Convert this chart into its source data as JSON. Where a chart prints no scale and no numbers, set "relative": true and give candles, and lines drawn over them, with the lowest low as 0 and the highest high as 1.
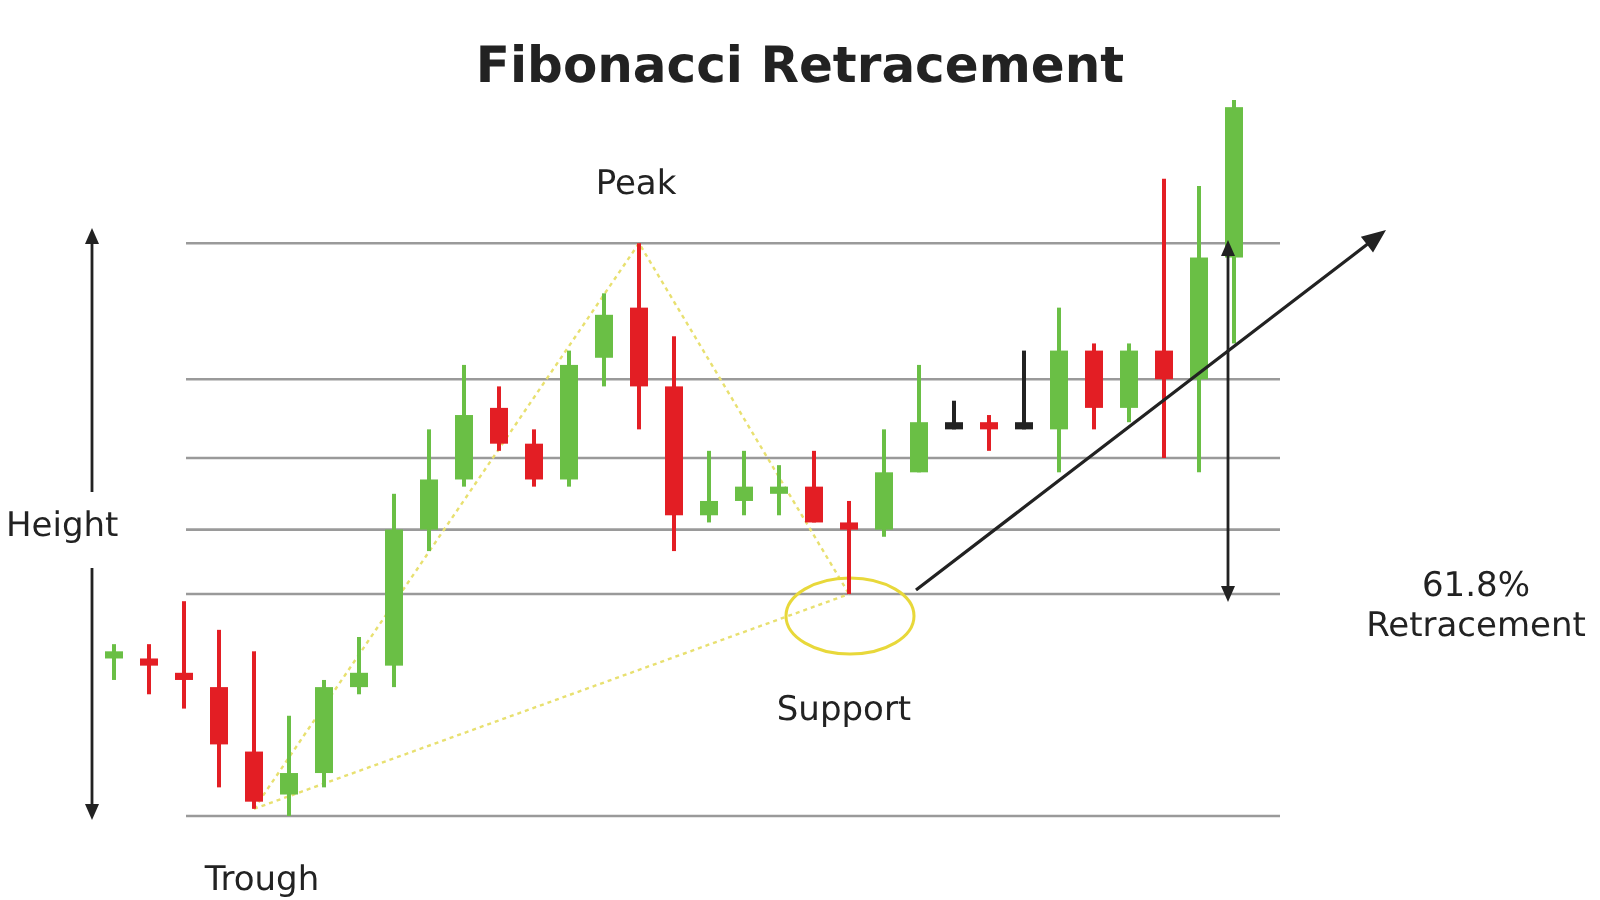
{
  "chart_data": {
    "type": "candlestick",
    "title": "Fibonacci Retracement",
    "relative": true,
    "categories": [
      null,
      null,
      null,
      null,
      null,
      null,
      null,
      null,
      null,
      null,
      null,
      null,
      null,
      null,
      null,
      null,
      null,
      null,
      null,
      null,
      null,
      null,
      null,
      null,
      null,
      null,
      null,
      null,
      null,
      null,
      null,
      null,
      null
    ],
    "ohlc": [
      [
        0.22,
        0.24,
        0.19,
        0.23
      ],
      [
        0.22,
        0.24,
        0.17,
        0.21
      ],
      [
        0.2,
        0.3,
        0.15,
        0.19
      ],
      [
        0.18,
        0.26,
        0.04,
        0.1
      ],
      [
        0.09,
        0.23,
        0.01,
        0.02
      ],
      [
        0.03,
        0.14,
        0,
        0.06
      ],
      [
        0.06,
        0.19,
        0.04,
        0.18
      ],
      [
        0.18,
        0.25,
        0.17,
        0.2
      ],
      [
        0.21,
        0.45,
        0.18,
        0.4
      ],
      [
        0.4,
        0.54,
        0.37,
        0.47
      ],
      [
        0.47,
        0.63,
        0.46,
        0.56
      ],
      [
        0.57,
        0.6,
        0.51,
        0.52
      ],
      [
        0.52,
        0.54,
        0.46,
        0.47
      ],
      [
        0.47,
        0.65,
        0.46,
        0.63
      ],
      [
        0.64,
        0.73,
        0.6,
        0.7
      ],
      [
        0.71,
        0.8,
        0.54,
        0.6
      ],
      [
        0.6,
        0.67,
        0.37,
        0.42
      ],
      [
        0.42,
        0.51,
        0.41,
        0.44
      ],
      [
        0.44,
        0.51,
        0.42,
        0.46
      ],
      [
        0.45,
        0.49,
        0.42,
        0.46
      ],
      [
        0.46,
        0.51,
        0.41,
        0.41
      ],
      [
        0.41,
        0.44,
        0.31,
        0.4
      ],
      [
        0.4,
        0.54,
        0.39,
        0.48
      ],
      [
        0.48,
        0.63,
        0.48,
        0.55
      ],
      [
        0.55,
        0.58,
        0.54,
        0.54
      ],
      [
        0.55,
        0.56,
        0.51,
        0.54
      ],
      [
        0.55,
        0.65,
        0.54,
        0.54
      ],
      [
        0.54,
        0.71,
        0.48,
        0.65
      ],
      [
        0.65,
        0.66,
        0.54,
        0.57
      ],
      [
        0.57,
        0.66,
        0.55,
        0.65
      ],
      [
        0.65,
        0.89,
        0.5,
        0.61
      ],
      [
        0.61,
        0.88,
        0.48,
        0.78
      ],
      [
        0.78,
        1,
        0.66,
        0.99
      ]
    ],
    "colors": [
      "#6abf45",
      "#e31e24",
      "#e31e24",
      "#e31e24",
      "#e31e24",
      "#6abf45",
      "#6abf45",
      "#6abf45",
      "#6abf45",
      "#6abf45",
      "#6abf45",
      "#e31e24",
      "#e31e24",
      "#6abf45",
      "#6abf45",
      "#e31e24",
      "#e31e24",
      "#6abf45",
      "#6abf45",
      "#6abf45",
      "#e31e24",
      "#e31e24",
      "#6abf45",
      "#6abf45",
      "#222222",
      "#e31e24",
      "#222222",
      "#6abf45",
      "#e31e24",
      "#6abf45",
      "#e31e24",
      "#6abf45",
      "#6abf45"
    ],
    "series": [
      {
        "type": "line",
        "color": "#e8e070",
        "line_style": "dotted",
        "values": [
          null,
          null,
          null,
          null,
          0.01,
          null,
          null,
          null,
          null,
          null,
          null,
          null,
          null,
          null,
          null,
          0.8,
          null,
          null,
          null,
          null,
          null,
          0.31,
          null,
          null,
          null,
          null,
          null,
          null,
          null,
          null,
          null,
          null,
          null
        ]
      },
      {
        "type": "line",
        "color": "#e8e070",
        "line_style": "dotted",
        "values": [
          null,
          null,
          null,
          null,
          0.01,
          null,
          null,
          null,
          null,
          null,
          null,
          null,
          null,
          null,
          null,
          null,
          null,
          null,
          null,
          null,
          null,
          0.31,
          null,
          null,
          null,
          null,
          null,
          null,
          null,
          null,
          null,
          null,
          null
        ]
      }
    ],
    "ref_lines": [
      {
        "axis": "y",
        "value": 0.8,
        "color": "#9a9a9a"
      },
      {
        "axis": "y",
        "value": 0.61,
        "color": "#9a9a9a"
      },
      {
        "axis": "y",
        "value": 0.5,
        "color": "#9a9a9a"
      },
      {
        "axis": "y",
        "value": 0.4,
        "color": "#9a9a9a"
      },
      {
        "axis": "y",
        "value": 0.31,
        "color": "#9a9a9a"
      },
      {
        "axis": "y",
        "value": 0,
        "color": "#9a9a9a"
      }
    ],
    "annotations": [
      "Peak",
      "Height",
      "Trough",
      "Support",
      "61.8% Retracement"
    ]
  }
}
